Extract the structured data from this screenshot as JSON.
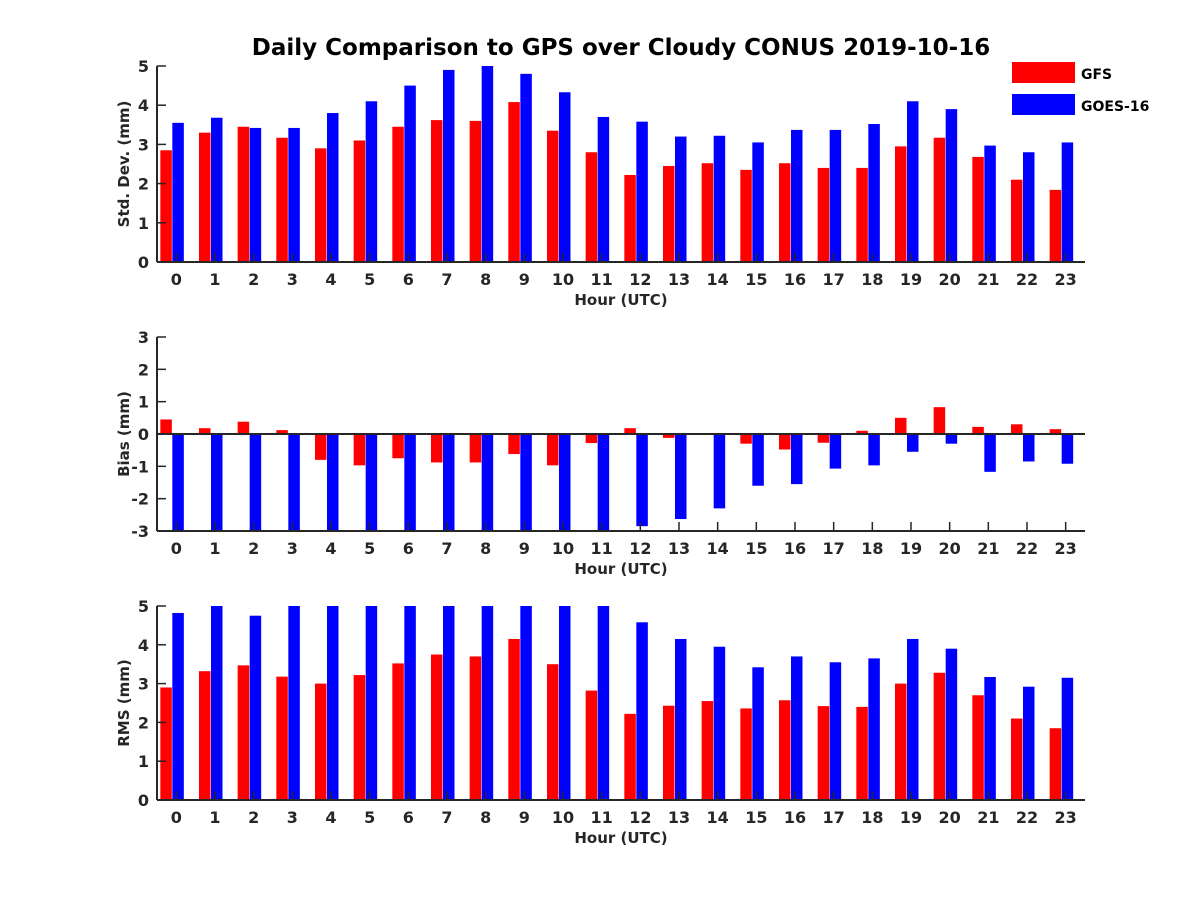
{
  "title": "Daily Comparison to GPS over Cloudy CONUS 2019-10-16",
  "legend": [
    {
      "name": "GFS",
      "color": "#ff0000"
    },
    {
      "name": "GOES-16",
      "color": "#0000ff"
    }
  ],
  "chart_data": [
    {
      "type": "bar",
      "categories": [
        "0",
        "1",
        "2",
        "3",
        "4",
        "5",
        "6",
        "7",
        "8",
        "9",
        "10",
        "11",
        "12",
        "13",
        "14",
        "15",
        "16",
        "17",
        "18",
        "19",
        "20",
        "21",
        "22",
        "23"
      ],
      "xlabel": "Hour (UTC)",
      "ylabel": "Std. Dev. (mm)",
      "ylim": [
        0,
        5
      ],
      "yticks": [
        0,
        1,
        2,
        3,
        4,
        5
      ],
      "series": [
        {
          "name": "GFS",
          "color": "#ff0000",
          "values": [
            2.85,
            3.3,
            3.45,
            3.17,
            2.9,
            3.1,
            3.45,
            3.62,
            3.6,
            4.08,
            3.35,
            2.8,
            2.22,
            2.45,
            2.52,
            2.35,
            2.52,
            2.4,
            2.4,
            2.95,
            3.17,
            2.68,
            2.1,
            1.84
          ]
        },
        {
          "name": "GOES-16",
          "color": "#0000ff",
          "values": [
            3.55,
            3.68,
            3.42,
            3.42,
            3.8,
            4.1,
            4.5,
            4.9,
            5.0,
            4.8,
            4.33,
            3.7,
            3.58,
            3.2,
            3.22,
            3.05,
            3.37,
            3.37,
            3.52,
            4.1,
            3.9,
            2.97,
            2.8,
            3.05
          ]
        }
      ]
    },
    {
      "type": "bar",
      "categories": [
        "0",
        "1",
        "2",
        "3",
        "4",
        "5",
        "6",
        "7",
        "8",
        "9",
        "10",
        "11",
        "12",
        "13",
        "14",
        "15",
        "16",
        "17",
        "18",
        "19",
        "20",
        "21",
        "22",
        "23"
      ],
      "xlabel": "Hour (UTC)",
      "ylabel": "Bias (mm)",
      "ylim": [
        -3,
        3
      ],
      "yticks": [
        -3,
        -2,
        -1,
        0,
        1,
        2,
        3
      ],
      "series": [
        {
          "name": "GFS",
          "color": "#ff0000",
          "values": [
            0.45,
            0.18,
            0.38,
            0.12,
            -0.8,
            -0.97,
            -0.75,
            -0.88,
            -0.88,
            -0.62,
            -0.97,
            -0.28,
            0.18,
            -0.12,
            0.0,
            -0.3,
            -0.48,
            -0.27,
            0.1,
            0.5,
            0.83,
            0.22,
            0.3,
            0.15
          ]
        },
        {
          "name": "GOES-16",
          "color": "#0000ff",
          "values": [
            -3.0,
            -3.0,
            -3.0,
            -3.0,
            -3.0,
            -3.0,
            -3.0,
            -3.0,
            -3.0,
            -3.0,
            -3.0,
            -3.0,
            -2.85,
            -2.63,
            -2.3,
            -1.6,
            -1.55,
            -1.07,
            -0.97,
            -0.55,
            -0.3,
            -1.17,
            -0.85,
            -0.92
          ]
        }
      ]
    },
    {
      "type": "bar",
      "categories": [
        "0",
        "1",
        "2",
        "3",
        "4",
        "5",
        "6",
        "7",
        "8",
        "9",
        "10",
        "11",
        "12",
        "13",
        "14",
        "15",
        "16",
        "17",
        "18",
        "19",
        "20",
        "21",
        "22",
        "23"
      ],
      "xlabel": "Hour (UTC)",
      "ylabel": "RMS (mm)",
      "ylim": [
        0,
        5
      ],
      "yticks": [
        0,
        1,
        2,
        3,
        4,
        5
      ],
      "series": [
        {
          "name": "GFS",
          "color": "#ff0000",
          "values": [
            2.9,
            3.32,
            3.47,
            3.18,
            3.0,
            3.22,
            3.52,
            3.75,
            3.7,
            4.15,
            3.5,
            2.82,
            2.22,
            2.43,
            2.55,
            2.36,
            2.57,
            2.42,
            2.4,
            3.0,
            3.28,
            2.7,
            2.1,
            1.85
          ]
        },
        {
          "name": "GOES-16",
          "color": "#0000ff",
          "values": [
            4.82,
            5.0,
            4.75,
            5.0,
            5.0,
            5.0,
            5.0,
            5.0,
            5.0,
            5.0,
            5.0,
            5.0,
            4.58,
            4.15,
            3.95,
            3.42,
            3.7,
            3.55,
            3.65,
            4.15,
            3.9,
            3.17,
            2.92,
            3.15
          ]
        }
      ]
    }
  ]
}
